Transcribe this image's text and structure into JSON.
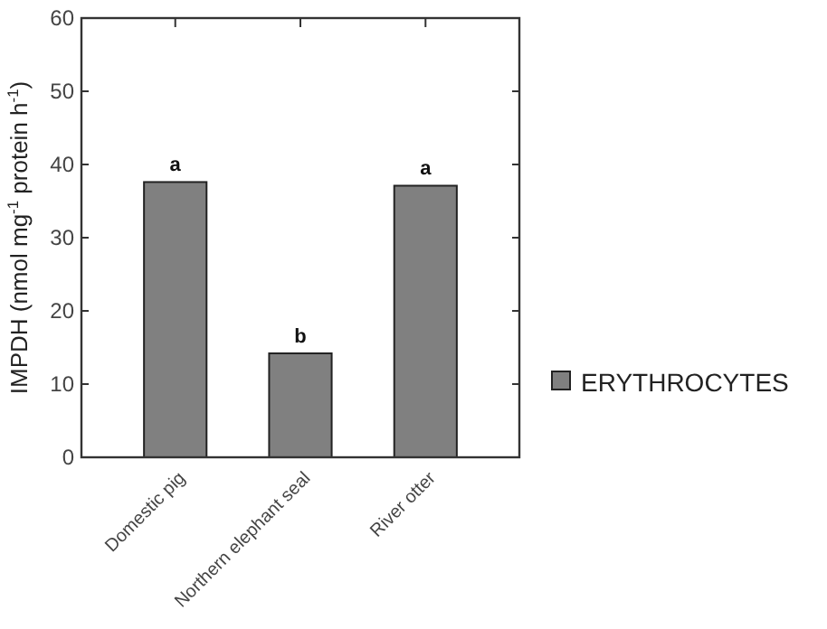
{
  "chart_data": {
    "type": "bar",
    "ylabel": "IMPDH (nmol mg$^{-1}$ protein h$^{-1}$)",
    "categories": [
      "Domestic pig",
      "Northern elephant seal",
      "River otter"
    ],
    "series": [
      {
        "name": "ERYTHROCYTES",
        "color": "#808080",
        "values": [
          37.6,
          14.2,
          37.1
        ]
      }
    ],
    "ylim": [
      0,
      60
    ],
    "yticks": [
      0,
      10,
      20,
      30,
      40,
      50,
      60
    ],
    "grid": false,
    "legend": "right",
    "annotations": [
      {
        "text": "a",
        "x": "Domestic pig",
        "y": 37.6
      },
      {
        "text": "b",
        "x": "Northern elephant seal",
        "y": 14.2
      },
      {
        "text": "a",
        "x": "River otter",
        "y": 37.1
      }
    ]
  }
}
